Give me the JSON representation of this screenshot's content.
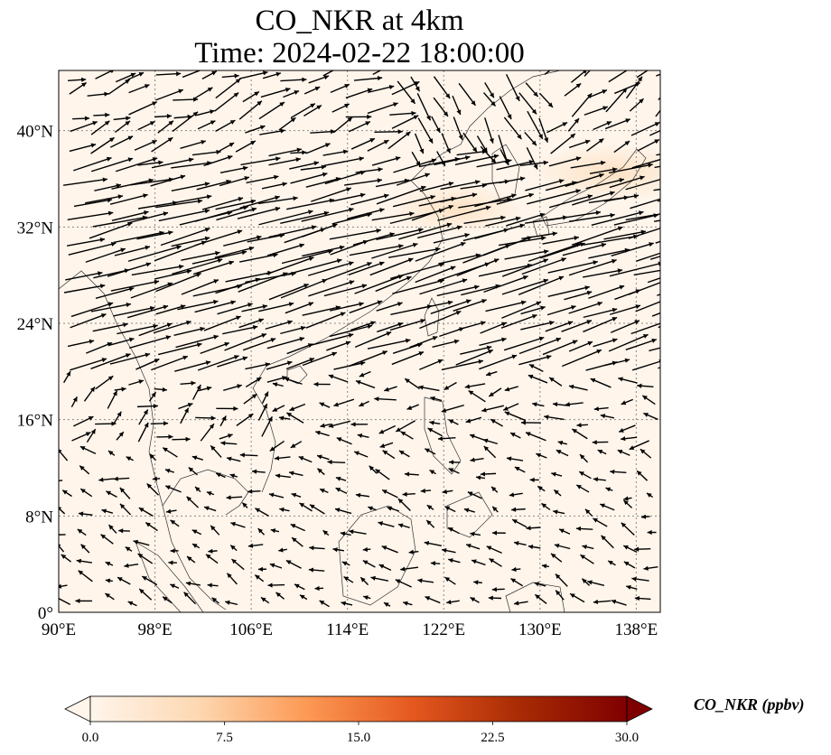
{
  "title": {
    "line1": "CO_NKR at 4km",
    "line2": "Time: 2024-02-22 18:00:00"
  },
  "chart_data": {
    "type": "map",
    "projection": "PlateCarree",
    "lon_range": [
      90,
      140
    ],
    "lat_range": [
      0,
      45
    ],
    "x_ticks": [
      {
        "value": 90,
        "label": "90°E"
      },
      {
        "value": 98,
        "label": "98°E"
      },
      {
        "value": 106,
        "label": "106°E"
      },
      {
        "value": 114,
        "label": "114°E"
      },
      {
        "value": 122,
        "label": "122°E"
      },
      {
        "value": 130,
        "label": "130°E"
      },
      {
        "value": 138,
        "label": "138°E"
      }
    ],
    "y_ticks": [
      {
        "value": 0,
        "label": "0°"
      },
      {
        "value": 8,
        "label": "8°N"
      },
      {
        "value": 16,
        "label": "16°N"
      },
      {
        "value": 24,
        "label": "24°N"
      },
      {
        "value": 32,
        "label": "32°N"
      },
      {
        "value": 40,
        "label": "40°N"
      }
    ],
    "grid": true,
    "field": "CO_NKR",
    "field_range": [
      0,
      30
    ],
    "elevated_regions": [
      {
        "lon": 136,
        "lat": 36.5,
        "value": 4.5
      },
      {
        "lon": 123,
        "lat": 33.5,
        "value": 3
      }
    ],
    "colorbar": {
      "label": "CO_NKR (ppbv)",
      "ticks": [
        "0.0",
        "7.5",
        "15.0",
        "22.5",
        "30.0"
      ],
      "values": [
        0,
        7.5,
        15,
        22.5,
        30
      ],
      "colors": [
        "#fff5eb",
        "#fdd8b2",
        "#fd9a55",
        "#e5581f",
        "#a82b04",
        "#7f0000"
      ],
      "extend": "both"
    },
    "wind_vectors": "quiver field: strong westerly band 20–38°N, weak variable flow south of 16°N"
  }
}
